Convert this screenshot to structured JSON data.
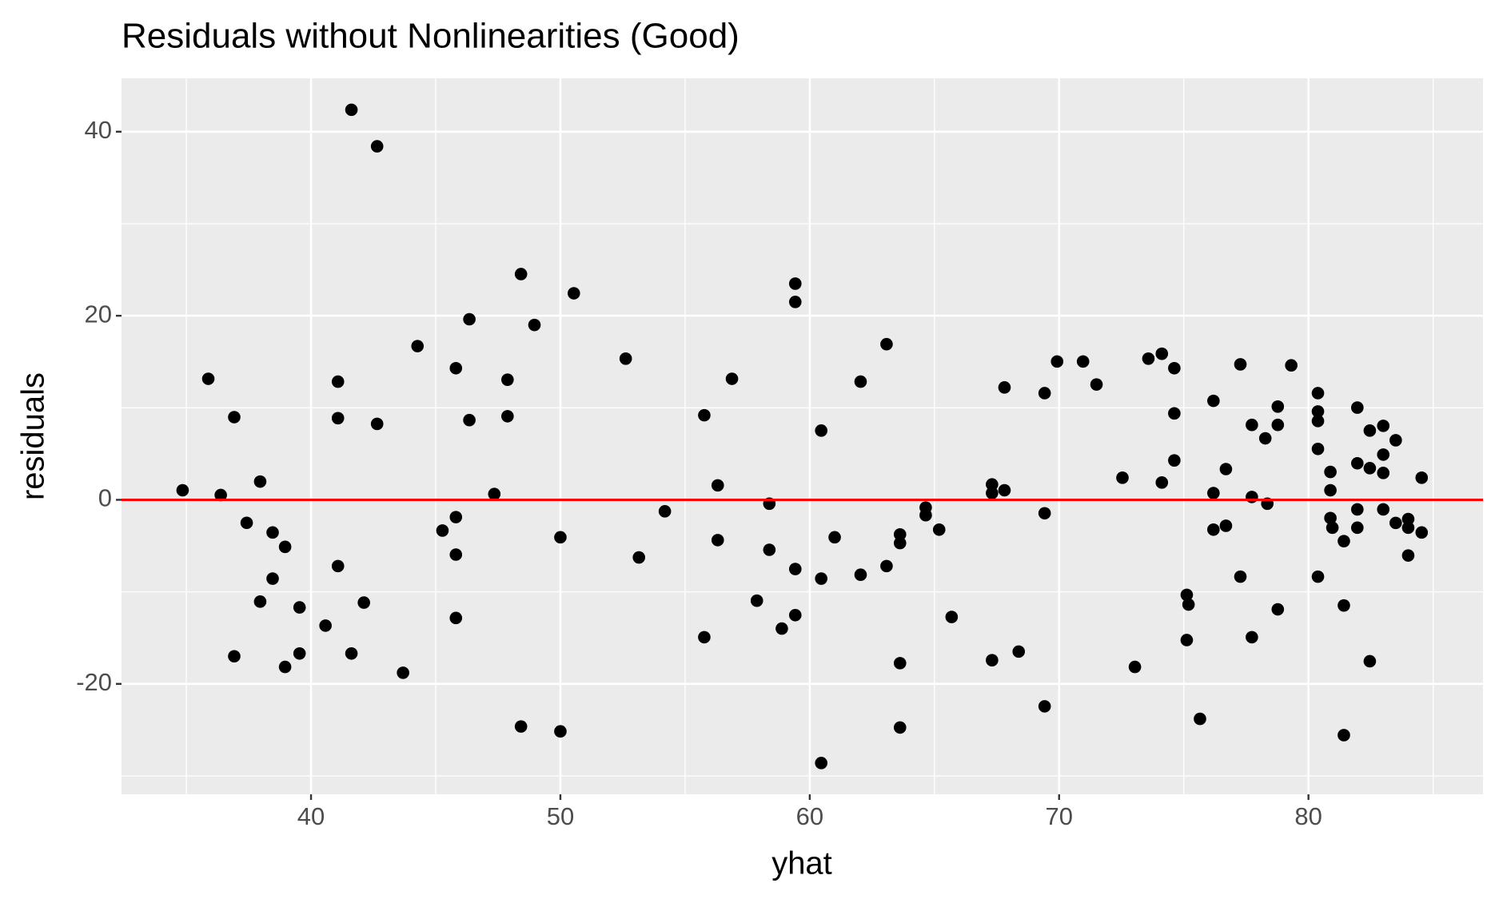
{
  "chart_data": {
    "type": "scatter",
    "title": "Residuals without Nonlinearities (Good)",
    "x_label": "yhat",
    "y_label": "residuals",
    "xlim": [
      32.4,
      87.0
    ],
    "ylim": [
      -32.0,
      45.8
    ],
    "xticks": [
      40,
      50,
      60,
      70,
      80
    ],
    "yticks": [
      -20,
      0,
      20,
      40
    ],
    "minor_xticks": [
      35,
      45,
      55,
      65,
      75,
      85
    ],
    "minor_yticks": [
      -30,
      -10,
      10,
      30
    ],
    "grid": true,
    "panel_color": "#ebebeb",
    "color": "#000000",
    "hline": 0,
    "hline_color": "#ff0000",
    "series": [
      {
        "name": "residuals",
        "color": "#000000",
        "x": [
          34.85,
          35.88,
          36.38,
          36.92,
          36.92,
          37.42,
          37.96,
          37.96,
          38.46,
          38.46,
          38.96,
          38.96,
          39.54,
          39.54,
          40.58,
          41.08,
          41.08,
          41.08,
          41.62,
          41.62,
          42.12,
          42.65,
          42.65,
          43.69,
          44.27,
          45.27,
          45.81,
          45.81,
          45.81,
          45.81,
          46.35,
          46.35,
          47.35,
          47.88,
          47.88,
          48.42,
          48.42,
          48.96,
          50.0,
          50.0,
          50.54,
          52.62,
          53.15,
          54.19,
          55.77,
          55.77,
          56.31,
          56.31,
          56.88,
          57.88,
          58.38,
          58.38,
          58.88,
          59.42,
          59.42,
          59.42,
          59.42,
          60.46,
          60.46,
          60.46,
          61.0,
          62.04,
          62.04,
          63.08,
          63.08,
          63.62,
          63.62,
          63.62,
          63.62,
          64.65,
          64.65,
          65.19,
          65.69,
          67.31,
          67.31,
          67.31,
          67.81,
          67.81,
          68.38,
          69.42,
          69.42,
          69.42,
          69.92,
          70.96,
          71.5,
          72.54,
          73.04,
          73.58,
          74.12,
          74.12,
          74.62,
          74.62,
          74.62,
          75.12,
          75.19,
          75.12,
          75.65,
          76.19,
          76.19,
          76.19,
          76.69,
          76.69,
          77.27,
          77.27,
          77.73,
          77.73,
          77.73,
          78.27,
          78.35,
          78.77,
          78.77,
          78.77,
          79.31,
          80.38,
          80.38,
          80.38,
          80.38,
          80.38,
          80.88,
          80.88,
          80.88,
          80.96,
          81.42,
          81.42,
          81.42,
          81.96,
          81.96,
          81.96,
          81.96,
          82.46,
          82.46,
          82.46,
          83.0,
          83.0,
          83.0,
          83.0,
          83.5,
          83.5,
          84.0,
          84.0,
          84.0,
          84.54,
          84.54
        ],
        "values": [
          1.04,
          13.15,
          0.52,
          8.98,
          -17.0,
          -2.5,
          1.98,
          -11.06,
          -3.55,
          -8.56,
          -5.11,
          -18.16,
          -11.69,
          -16.7,
          -13.67,
          -7.2,
          8.87,
          12.84,
          42.38,
          -16.7,
          -11.17,
          38.41,
          8.25,
          -18.79,
          16.7,
          -3.34,
          14.3,
          -1.88,
          -5.95,
          -12.84,
          19.62,
          8.66,
          0.63,
          13.05,
          9.08,
          24.53,
          -24.63,
          19.0,
          -4.07,
          -25.16,
          22.44,
          15.34,
          -6.26,
          -1.25,
          9.19,
          -14.93,
          1.57,
          -4.38,
          13.15,
          -10.96,
          -0.42,
          -5.43,
          -13.99,
          23.49,
          21.5,
          -7.52,
          -12.53,
          7.52,
          -8.56,
          -28.6,
          -4.07,
          12.84,
          -8.14,
          16.91,
          -7.2,
          -3.76,
          -4.7,
          -17.75,
          -24.74,
          -0.84,
          -1.67,
          -3.24,
          -12.73,
          1.67,
          0.73,
          -17.43,
          12.21,
          1.04,
          -16.49,
          11.59,
          -1.46,
          -22.44,
          15.03,
          15.03,
          12.53,
          2.4,
          -18.16,
          15.34,
          15.87,
          1.88,
          14.3,
          9.39,
          4.28,
          -10.33,
          -11.38,
          -15.24,
          -23.8,
          10.75,
          0.73,
          -3.24,
          3.34,
          -2.82,
          14.72,
          -8.35,
          8.14,
          0.31,
          -14.93,
          6.68,
          -0.42,
          10.13,
          8.14,
          -11.9,
          14.61,
          11.59,
          9.6,
          8.56,
          5.53,
          -8.35,
          3.03,
          1.04,
          -1.98,
          -3.03,
          -4.49,
          -11.48,
          -25.57,
          10.02,
          3.97,
          -1.04,
          -3.03,
          7.52,
          3.44,
          -17.54,
          8.04,
          4.91,
          2.92,
          -1.04,
          6.47,
          -2.51,
          -2.09,
          -3.03,
          -6.05,
          2.4,
          -3.55
        ]
      }
    ]
  }
}
